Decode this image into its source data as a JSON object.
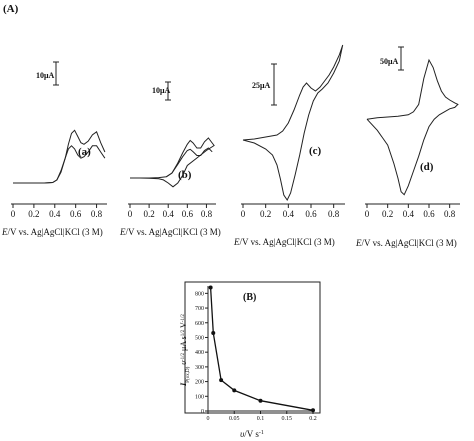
{
  "figure": {
    "label_A": "(A)",
    "label_B": "(B)"
  },
  "chart_data": [
    {
      "type": "line",
      "panel": "(a)",
      "x_ticks": [
        "0",
        "0.2",
        "0.4",
        "0.6",
        "0.8"
      ],
      "xlabel_italic": "E",
      "xlabel_rest": "/V vs. Ag|AgCl|KCl (3 M)",
      "scale_bar": "10μA",
      "series": [
        {
          "x": [
            0.0,
            0.1,
            0.2,
            0.3,
            0.38,
            0.42,
            0.46,
            0.5,
            0.53,
            0.56,
            0.59,
            0.62,
            0.65,
            0.68,
            0.72,
            0.76,
            0.8,
            0.84,
            0.88
          ],
          "y": [
            0,
            0,
            0,
            0,
            0.3,
            2,
            7,
            16,
            25,
            32,
            34,
            30,
            26,
            25,
            27,
            31,
            33,
            26,
            20
          ]
        },
        {
          "x": [
            0.0,
            0.1,
            0.2,
            0.3,
            0.38,
            0.42,
            0.46,
            0.5,
            0.53,
            0.56,
            0.59,
            0.62,
            0.65,
            0.68,
            0.72,
            0.76,
            0.8,
            0.84,
            0.88
          ],
          "y": [
            0,
            0,
            0,
            0,
            0.3,
            2,
            8,
            16,
            22,
            24,
            22,
            18,
            16,
            17,
            20,
            24,
            24,
            20,
            16
          ]
        }
      ]
    },
    {
      "type": "line",
      "panel": "(b)",
      "x_ticks": [
        "0",
        "0.2",
        "0.4",
        "0.6",
        "0.8"
      ],
      "xlabel_italic": "E",
      "xlabel_rest": "/V vs. Ag|AgCl|KCl (3 M)",
      "scale_bar": "10μA",
      "series": [
        {
          "x": [
            0.0,
            0.1,
            0.2,
            0.3,
            0.38,
            0.44,
            0.5,
            0.55,
            0.6,
            0.63,
            0.66,
            0.7,
            0.74,
            0.78,
            0.82,
            0.86,
            0.88,
            0.8,
            0.7,
            0.6,
            0.55,
            0.5,
            0.45,
            0.4,
            0.35,
            0.3,
            0.2,
            0.1,
            0.0
          ],
          "y": [
            0,
            0,
            0,
            0.3,
            1,
            4,
            12,
            20,
            27,
            30,
            28,
            24,
            24,
            29,
            32,
            28,
            26,
            22,
            16,
            10,
            2,
            -4,
            -7,
            -4,
            -1.5,
            -0.6,
            -0.2,
            0,
            0
          ]
        },
        {
          "x": [
            0.38,
            0.44,
            0.5,
            0.55,
            0.6,
            0.63,
            0.66,
            0.7,
            0.74,
            0.78,
            0.82,
            0.86
          ],
          "y": [
            1,
            4,
            11,
            17,
            22,
            23,
            21,
            18,
            18,
            22,
            24,
            21
          ]
        }
      ]
    },
    {
      "type": "line",
      "panel": "(c)",
      "x_ticks": [
        "0",
        "0.2",
        "0.4",
        "0.6",
        "0.8"
      ],
      "xlabel_italic": "E",
      "xlabel_rest": "/V vs. Ag|AgCl|KCl (3 M)",
      "scale_bar": "25μA",
      "series": [
        {
          "x": [
            0.0,
            0.1,
            0.2,
            0.3,
            0.35,
            0.4,
            0.45,
            0.5,
            0.53,
            0.56,
            0.6,
            0.64,
            0.68,
            0.72,
            0.76,
            0.8,
            0.85,
            0.88,
            0.85,
            0.8,
            0.75,
            0.7,
            0.66,
            0.62,
            0.58,
            0.54,
            0.5,
            0.46,
            0.42,
            0.39,
            0.36,
            0.33,
            0.3,
            0.26,
            0.2,
            0.1,
            0.0
          ],
          "y": [
            5,
            6,
            8,
            10,
            14,
            22,
            35,
            50,
            58,
            62,
            57,
            54,
            58,
            64,
            70,
            78,
            90,
            100,
            84,
            72,
            62,
            56,
            52,
            44,
            30,
            12,
            -10,
            -30,
            -48,
            -55,
            -50,
            -34,
            -20,
            -10,
            -4,
            2,
            5
          ]
        }
      ]
    },
    {
      "type": "line",
      "panel": "(d)",
      "x_ticks": [
        "0",
        "0.2",
        "0.4",
        "0.6",
        "0.8"
      ],
      "xlabel_italic": "E",
      "xlabel_rest": "/V vs. Ag|AgCl|KCl (3 M)",
      "scale_bar": "50μA",
      "series": [
        {
          "x": [
            0.0,
            0.1,
            0.2,
            0.3,
            0.4,
            0.45,
            0.5,
            0.55,
            0.6,
            0.64,
            0.68,
            0.72,
            0.76,
            0.8,
            0.85,
            0.88,
            0.85,
            0.8,
            0.75,
            0.7,
            0.65,
            0.6,
            0.55,
            0.5,
            0.45,
            0.4,
            0.36,
            0.33,
            0.3,
            0.26,
            0.2,
            0.1,
            0.0
          ],
          "y": [
            20,
            22,
            23,
            24,
            26,
            30,
            40,
            75,
            100,
            90,
            72,
            58,
            50,
            46,
            42,
            40,
            36,
            34,
            30,
            26,
            20,
            10,
            -8,
            -30,
            -50,
            -70,
            -82,
            -78,
            -60,
            -40,
            -15,
            5,
            20
          ]
        }
      ]
    },
    {
      "type": "scatter",
      "panel": "(B)",
      "x": [
        0.005,
        0.01,
        0.025,
        0.05,
        0.1,
        0.2
      ],
      "y": [
        840,
        530,
        210,
        140,
        70,
        5
      ],
      "xlim": [
        0,
        0.2
      ],
      "ylim": [
        0,
        850
      ],
      "x_ticks": [
        "0",
        "0.05",
        "0.1",
        "0.15",
        "0.2"
      ],
      "y_ticks": [
        "0",
        "100",
        "200",
        "300",
        "400",
        "500",
        "600",
        "700",
        "800"
      ],
      "xlabel_italic": "υ",
      "xlabel_rest": "/V s",
      "xlabel_sup": "-1",
      "ylabel_I": "I",
      "ylabel_sub": "P(ox,D)",
      "ylabel_mid": " υ",
      "ylabel_sup1": "-1/2",
      "ylabel_mid2": " μA s",
      "ylabel_sup2": "1/2",
      "ylabel_end": " V",
      "ylabel_sup3": "-1/2"
    }
  ]
}
